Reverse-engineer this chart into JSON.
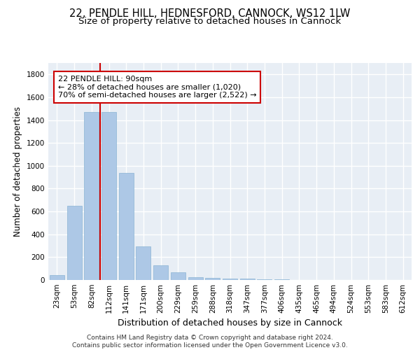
{
  "title_line1": "22, PENDLE HILL, HEDNESFORD, CANNOCK, WS12 1LW",
  "title_line2": "Size of property relative to detached houses in Cannock",
  "xlabel": "Distribution of detached houses by size in Cannock",
  "ylabel": "Number of detached properties",
  "categories": [
    "23sqm",
    "53sqm",
    "82sqm",
    "112sqm",
    "141sqm",
    "171sqm",
    "200sqm",
    "229sqm",
    "259sqm",
    "288sqm",
    "318sqm",
    "347sqm",
    "377sqm",
    "406sqm",
    "435sqm",
    "465sqm",
    "494sqm",
    "524sqm",
    "553sqm",
    "583sqm",
    "612sqm"
  ],
  "values": [
    40,
    650,
    1470,
    1470,
    940,
    295,
    130,
    65,
    25,
    20,
    10,
    10,
    5,
    5,
    2,
    1,
    0,
    0,
    0,
    0,
    0
  ],
  "bar_color": "#adc8e6",
  "bar_edge_color": "#8ab4d4",
  "vline_color": "#cc0000",
  "annotation_text": "22 PENDLE HILL: 90sqm\n← 28% of detached houses are smaller (1,020)\n70% of semi-detached houses are larger (2,522) →",
  "annotation_box_color": "#cc0000",
  "ylim": [
    0,
    1900
  ],
  "yticks": [
    0,
    200,
    400,
    600,
    800,
    1000,
    1200,
    1400,
    1600,
    1800
  ],
  "background_color": "#e8eef5",
  "grid_color": "#ffffff",
  "footer_text": "Contains HM Land Registry data © Crown copyright and database right 2024.\nContains public sector information licensed under the Open Government Licence v3.0.",
  "title_fontsize": 10.5,
  "subtitle_fontsize": 9.5,
  "axis_label_fontsize": 8.5,
  "tick_fontsize": 7.5,
  "footer_fontsize": 6.5
}
